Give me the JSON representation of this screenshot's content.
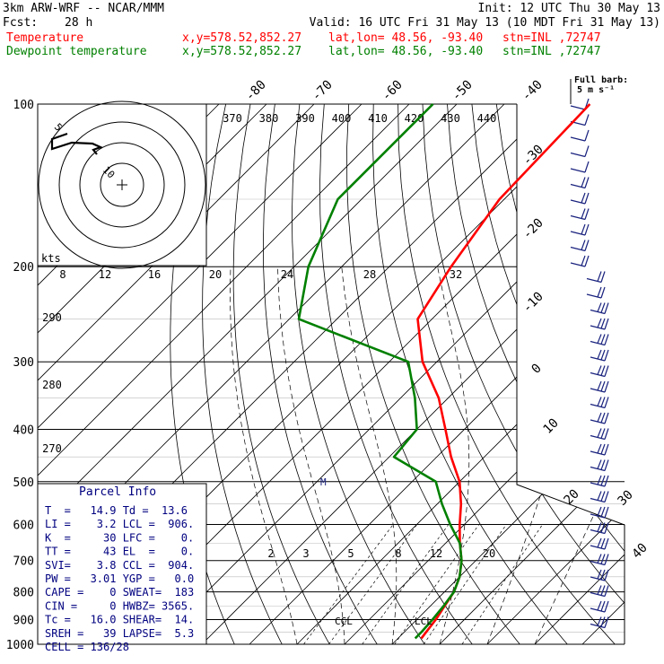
{
  "header": {
    "model": "3km ARW-WRF -- NCAR/MMM",
    "init": "Init: 12 UTC Thu 30 May 13",
    "fcst_label": "Fcst:",
    "fcst_value": "28 h",
    "valid": "Valid: 16 UTC Fri 31 May 13 (10 MDT Fri 31 May 13)",
    "temp_line": {
      "name": "Temperature",
      "xy": "x,y=578.52,852.27",
      "latlon": "lat,lon= 48.56, -93.40",
      "stn": "stn=INL ,72747",
      "color": "#ff0000"
    },
    "dew_line": {
      "name": "Dewpoint temperature",
      "xy": "x,y=578.52,852.27",
      "latlon": "lat,lon= 48.56, -93.40",
      "stn": "stn=INL ,72747",
      "color": "#008000"
    }
  },
  "wind_header": {
    "line1": "Full barb:",
    "line2": "5 m s⁻¹"
  },
  "hodograph": {
    "ring_labels": [
      "5",
      "10"
    ],
    "kts": "kts",
    "scale_labels": [
      "8",
      "12",
      "16",
      "20",
      "24",
      "28",
      "32"
    ]
  },
  "top_labels": {
    "theta_e": [
      "370",
      "380",
      "390",
      "400",
      "410",
      "420",
      "430",
      "440"
    ],
    "isotherms": [
      "-80",
      "-70",
      "-60",
      "-50",
      "-40"
    ],
    "right_isotherms": [
      "-30",
      "-20",
      "-10",
      "0",
      "10",
      "20",
      "30",
      "40"
    ],
    "adiabat_labels": [
      "290",
      "280",
      "270"
    ],
    "mixing_ratio": [
      "2",
      "3",
      "5",
      "8",
      "12",
      "20"
    ]
  },
  "markers": {
    "ccl": "CCL",
    "lcl": "LCL",
    "m": "M"
  },
  "parcel_info": {
    "title": "Parcel Info",
    "rows": [
      "T  =   14.9 Td =  13.6",
      "LI =    3.2 LCL =  906.",
      "K  =     30 LFC =    0.",
      "TT =     43 EL  =    0.",
      "SVI=    3.8 CCL =  904.",
      "PW =   3.01 YGP =   0.0",
      "CAPE =    0 SWEAT=  183",
      "CIN =     0 HWBZ= 3565.",
      "Tc =   16.0 SHEAR=  14.",
      "SREH =   39 LAPSE=  5.3",
      "CELL = 136/28"
    ]
  },
  "chart_data": {
    "type": "line",
    "title": "",
    "ylabel": "",
    "y_scale": "log",
    "pressure_levels": [
      100,
      200,
      300,
      400,
      500,
      600,
      700,
      800,
      900,
      1000
    ],
    "series": [
      {
        "name": "Temperature",
        "color": "#ff0000",
        "points": [
          [
            100,
            -62
          ],
          [
            150,
            -61
          ],
          [
            200,
            -57
          ],
          [
            250,
            -53
          ],
          [
            300,
            -43
          ],
          [
            350,
            -32
          ],
          [
            400,
            -24
          ],
          [
            450,
            -17
          ],
          [
            500,
            -10
          ],
          [
            550,
            -5
          ],
          [
            600,
            -1
          ],
          [
            650,
            3
          ],
          [
            700,
            7
          ],
          [
            750,
            10
          ],
          [
            800,
            12
          ],
          [
            850,
            13
          ],
          [
            900,
            14
          ],
          [
            950,
            14.6
          ],
          [
            975,
            14.9
          ]
        ]
      },
      {
        "name": "Dewpoint temperature",
        "color": "#008000",
        "points": [
          [
            100,
            -95
          ],
          [
            150,
            -95
          ],
          [
            200,
            -87
          ],
          [
            250,
            -78
          ],
          [
            300,
            -46
          ],
          [
            350,
            -37
          ],
          [
            400,
            -30
          ],
          [
            450,
            -29
          ],
          [
            500,
            -15
          ],
          [
            550,
            -9
          ],
          [
            600,
            -3
          ],
          [
            650,
            3
          ],
          [
            700,
            7
          ],
          [
            750,
            10
          ],
          [
            800,
            12
          ],
          [
            850,
            12.8
          ],
          [
            900,
            13.3
          ],
          [
            950,
            13.6
          ],
          [
            975,
            13.6
          ]
        ]
      }
    ]
  }
}
